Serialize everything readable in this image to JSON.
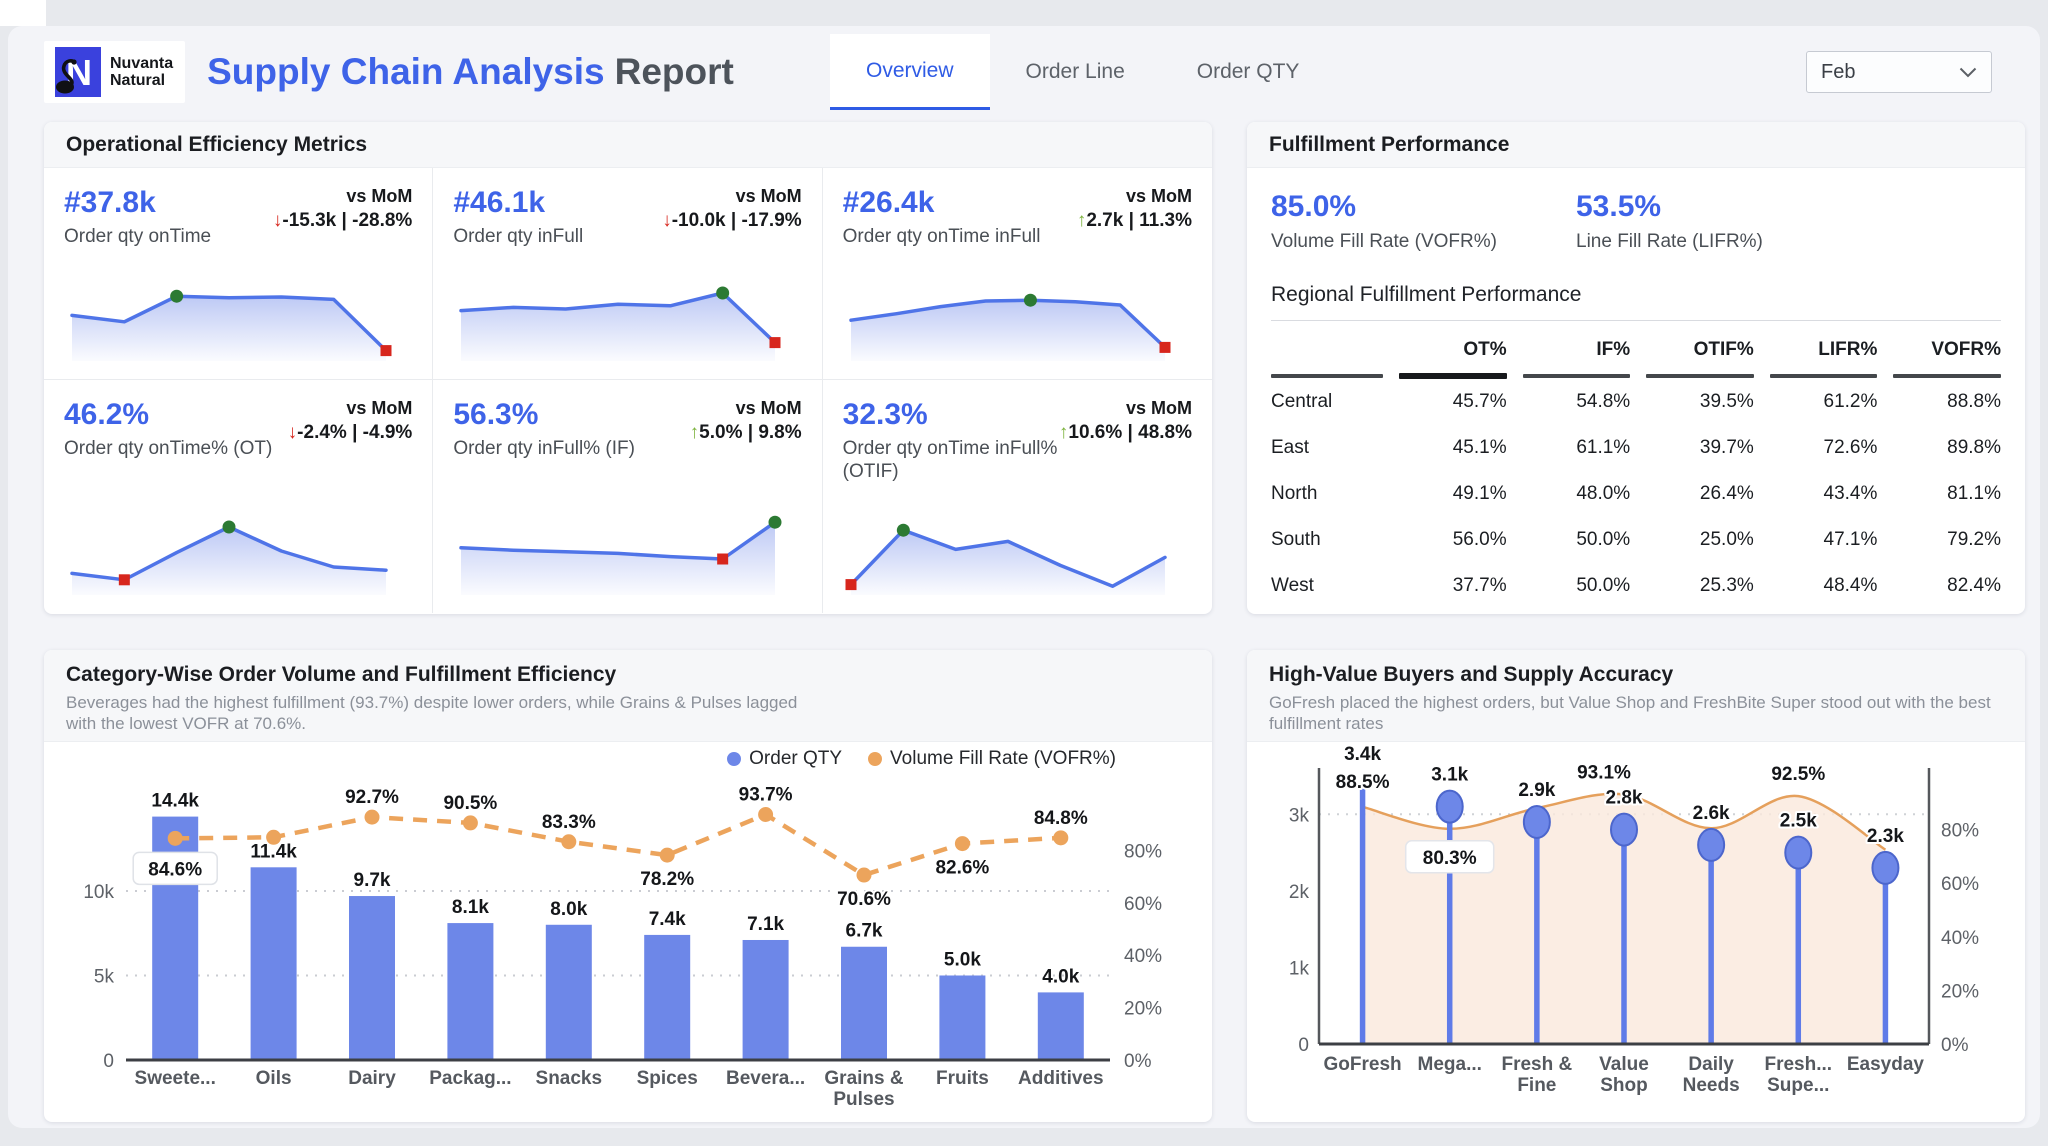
{
  "header": {
    "logo": {
      "letter": "N",
      "brand_line1": "Nuvanta",
      "brand_line2": "Natural"
    },
    "title_primary": "Supply Chain Analysis",
    "title_secondary": "Report",
    "tabs": [
      {
        "label": "Overview",
        "active": true
      },
      {
        "label": "Order Line",
        "active": false
      },
      {
        "label": "Order QTY",
        "active": false
      }
    ],
    "month_filter": {
      "value": "Feb"
    }
  },
  "colors": {
    "accent_blue": "#3E63E8",
    "bar_blue": "#6D87E8",
    "stick_blue": "#5F7BE8",
    "line_orange": "#ECA45C",
    "area_peach": "#FAE9DC",
    "up_green": "#7CB23C",
    "down_red": "#D7261D",
    "marker_green": "#2C7A33",
    "spark_blue": "#4F74E8"
  },
  "panels": {
    "operational": {
      "title": "Operational Efficiency Metrics",
      "vs_label": "vs MoM",
      "kpis": [
        {
          "value": "#37.8k",
          "label": "Order qty onTime",
          "direction": "down",
          "delta": "-15.3k",
          "delta_pct": "-28.8%",
          "spark": [
            52,
            44,
            76,
            74,
            75,
            72,
            8
          ],
          "green_idx": 2,
          "red_idx": 6
        },
        {
          "value": "#46.1k",
          "label": "Order qty inFull",
          "direction": "down",
          "delta": "-10.0k",
          "delta_pct": "-17.9%",
          "spark": [
            58,
            62,
            60,
            66,
            64,
            80,
            18
          ],
          "green_idx": 5,
          "red_idx": 6
        },
        {
          "value": "#26.4k",
          "label": "Order qty onTime inFull",
          "direction": "up",
          "delta": "2.7k",
          "delta_pct": "11.3%",
          "spark": [
            46,
            54,
            63,
            70,
            71,
            69,
            65,
            12
          ],
          "green_idx": 4,
          "red_idx": 7
        },
        {
          "value": "46.2%",
          "label": "Order qty onTime% (OT)",
          "direction": "down",
          "delta": "-2.4%",
          "delta_pct": "-4.9%",
          "spark": [
            22,
            14,
            48,
            80,
            50,
            30,
            26
          ],
          "green_idx": 3,
          "red_idx": 1
        },
        {
          "value": "56.3%",
          "label": "Order qty inFull% (IF)",
          "direction": "up",
          "delta": "5.0%",
          "delta_pct": "9.8%",
          "spark": [
            54,
            51,
            49,
            47,
            43,
            40,
            86
          ],
          "green_idx": 6,
          "red_idx": 5
        },
        {
          "value": "32.3%",
          "label": "Order qty onTime inFull% (OTIF)",
          "direction": "up",
          "delta": "10.6%",
          "delta_pct": "48.8%",
          "spark": [
            8,
            76,
            52,
            62,
            32,
            6,
            42
          ],
          "green_idx": 1,
          "red_idx": 0
        }
      ]
    },
    "fulfillment": {
      "title": "Fulfillment Performance",
      "kpis": [
        {
          "value": "85.0%",
          "label": "Volume Fill Rate (VOFR%)"
        },
        {
          "value": "53.5%",
          "label": "Line Fill Rate (LIFR%)"
        }
      ],
      "table": {
        "title": "Regional Fulfillment Performance",
        "columns": [
          "OT%",
          "IF%",
          "OTIF%",
          "LIFR%",
          "VOFR%"
        ],
        "sorted_column": "OT%",
        "rows": [
          {
            "region": "Central",
            "values": [
              "45.7%",
              "54.8%",
              "39.5%",
              "61.2%",
              "88.8%"
            ]
          },
          {
            "region": "East",
            "values": [
              "45.1%",
              "61.1%",
              "39.7%",
              "72.6%",
              "89.8%"
            ]
          },
          {
            "region": "North",
            "values": [
              "49.1%",
              "48.0%",
              "26.4%",
              "43.4%",
              "81.1%"
            ]
          },
          {
            "region": "South",
            "values": [
              "56.0%",
              "50.0%",
              "25.0%",
              "47.1%",
              "79.2%"
            ]
          },
          {
            "region": "West",
            "values": [
              "37.7%",
              "50.0%",
              "25.3%",
              "48.4%",
              "82.4%"
            ]
          }
        ]
      }
    },
    "category_chart": {
      "title": "Category-Wise Order Volume and Fulfillment Efficiency",
      "subtitle": "Beverages had the highest fulfillment (93.7%) despite lower orders, while Grains & Pulses lagged with the lowest VOFR at 70.6%.",
      "legend": [
        "Order QTY",
        "Volume Fill Rate (VOFR%)"
      ]
    },
    "buyers_chart": {
      "title": "High-Value Buyers and Supply Accuracy",
      "subtitle": "GoFresh placed the highest orders, but Value Shop and FreshBite Super stood out with the best fulfillment rates"
    }
  },
  "chart_data": [
    {
      "id": "category_fulfillment",
      "type": "bar",
      "subtype": "bar+dashed-line combo",
      "categories": [
        "Sweete...",
        "Oils",
        "Dairy",
        "Packag...",
        "Snacks",
        "Spices",
        "Bevera...",
        "Grains & Pulses",
        "Fruits",
        "Additives"
      ],
      "series": [
        {
          "name": "Order QTY",
          "type": "bar",
          "values": [
            14400,
            11400,
            9700,
            8100,
            8000,
            7400,
            7100,
            6700,
            5000,
            4000
          ],
          "labels": [
            "14.4k",
            "11.4k",
            "9.7k",
            "8.1k",
            "8.0k",
            "7.4k",
            "7.1k",
            "6.7k",
            "5.0k",
            "4.0k"
          ]
        },
        {
          "name": "Volume Fill Rate (VOFR%)",
          "type": "line",
          "values": [
            84.6,
            85.0,
            92.7,
            90.5,
            83.3,
            78.2,
            93.7,
            70.6,
            82.6,
            84.8
          ],
          "labels": [
            "84.6%",
            null,
            "92.7%",
            "90.5%",
            "83.3%",
            "78.2%",
            "93.7%",
            "70.6%",
            "82.6%",
            "84.8%"
          ],
          "label_pos": [
            "box",
            null,
            "above",
            "above",
            "above",
            "below",
            "above",
            "below",
            "below",
            "above"
          ]
        }
      ],
      "y_left": {
        "ticks": [
          "0",
          "5k",
          "10k"
        ],
        "tick_values": [
          0,
          5000,
          10000
        ],
        "max": 15500
      },
      "y_right": {
        "ticks": [
          "0%",
          "20%",
          "40%",
          "60%",
          "80%"
        ],
        "tick_values": [
          0,
          20,
          40,
          60,
          80
        ],
        "max": 100
      },
      "grid": "dotted horizontal",
      "legend_position": "top-right"
    },
    {
      "id": "buyers_accuracy",
      "type": "line",
      "subtype": "lollipop+smooth-area combo",
      "categories": [
        "GoFresh",
        "Mega...",
        "Fresh & Fine",
        "Value Shop",
        "Daily Needs",
        "Fresh... Supe...",
        "Easyday"
      ],
      "series": [
        {
          "name": "Order QTY",
          "type": "lollipop",
          "values": [
            3400,
            3100,
            2900,
            2800,
            2600,
            2500,
            2300
          ],
          "labels": [
            "3.4k",
            "3.1k",
            "2.9k",
            "2.8k",
            "2.6k",
            "2.5k",
            "2.3k"
          ]
        },
        {
          "name": "Fill Rate %",
          "type": "area",
          "values": [
            88.5,
            80.3,
            88.0,
            93.1,
            80.5,
            92.5,
            72.5
          ],
          "labels": [
            "88.5%",
            "80.3%",
            null,
            "93.1%",
            null,
            "92.5%",
            null
          ],
          "label_pos": [
            "above",
            "box",
            null,
            "above",
            null,
            "above",
            null
          ]
        }
      ],
      "y_left": {
        "ticks": [
          "0",
          "1k",
          "2k",
          "3k"
        ],
        "tick_values": [
          0,
          1000,
          2000,
          3000
        ],
        "max": 3500
      },
      "y_right": {
        "ticks": [
          "0%",
          "20%",
          "40%",
          "60%",
          "80%"
        ],
        "tick_values": [
          0,
          20,
          40,
          60,
          80
        ],
        "max": 100
      },
      "grid": "dotted at 3k"
    }
  ]
}
